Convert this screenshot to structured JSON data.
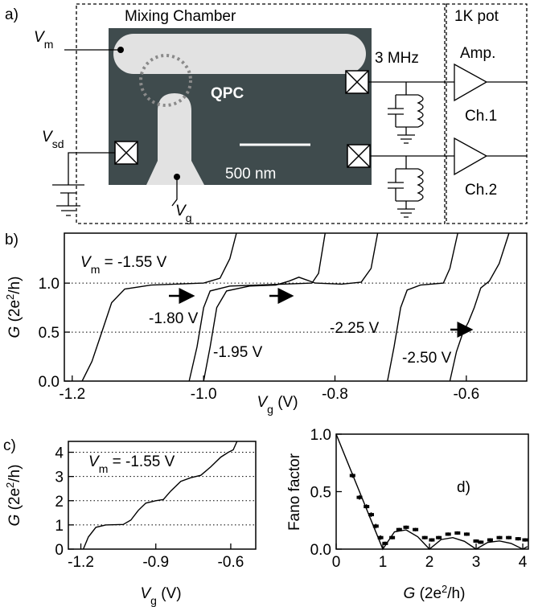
{
  "panel_labels": {
    "a": "a)",
    "b": "b)",
    "c": "c)"
  },
  "diagram": {
    "mixing_chamber": "Mixing Chamber",
    "pot": "1K pot",
    "vm": {
      "symbol": "V",
      "sub": "m"
    },
    "vsd": {
      "symbol": "V",
      "sub": "sd"
    },
    "vg": {
      "symbol": "V",
      "sub": "g"
    },
    "qpc": "QPC",
    "scale_bar": "500 nm",
    "filter": "3 MHz",
    "amp": "Amp.",
    "ch1": "Ch.1",
    "ch2": "Ch.2"
  },
  "chart_data": [
    {
      "type": "line",
      "xlim": [
        -1.212,
        -0.508
      ],
      "ylim": [
        0,
        1.51
      ],
      "xticks": [
        -1.2,
        {
          "value": -1.0,
          "label": "-1.0"
        },
        -0.8,
        -0.6
      ],
      "yticks": [
        {
          "value": 0,
          "label": "0.0"
        },
        0.5,
        {
          "value": 1.0,
          "label": "1.0"
        }
      ],
      "grid": true,
      "grid_style": "dotted",
      "color": "#000000",
      "xlabel": {
        "symbol": "V",
        "sub": "g",
        "text": " (V)"
      },
      "ylabel": {
        "symbol": "G",
        "text": " (2e",
        "sup": "2",
        "rest": "/h)"
      },
      "label_prefix": {
        "symbol": "V",
        "sub": "m",
        "text": " =  "
      },
      "series": [
        {
          "name": "-1.55 V",
          "x": [
            -1.185,
            -1.17,
            -1.155,
            -1.14,
            -1.12,
            -1.08,
            -1.0,
            -0.975,
            -0.96,
            -0.95
          ],
          "values": [
            0,
            0.2,
            0.5,
            0.8,
            0.94,
            0.98,
            1.0,
            1.05,
            1.25,
            1.51
          ]
        },
        {
          "name": "-1.80 V",
          "x": [
            -1.022,
            -1.01,
            -1.0,
            -0.99,
            -0.96,
            -0.88,
            -0.835,
            -0.825,
            -0.815
          ],
          "values": [
            0,
            0.35,
            0.75,
            0.92,
            0.97,
            0.99,
            1.0,
            1.1,
            1.51
          ]
        },
        {
          "name": "-1.95 V",
          "x": [
            -1.0,
            -0.99,
            -0.98,
            -0.965,
            -0.93,
            -0.89,
            -0.87,
            -0.855,
            -0.83,
            -0.79,
            -0.76,
            -0.745,
            -0.735
          ],
          "values": [
            0,
            0.35,
            0.75,
            0.92,
            0.97,
            0.98,
            1.02,
            1.06,
            1.0,
            0.99,
            1.01,
            1.15,
            1.51
          ]
        },
        {
          "name": "-2.25 V",
          "x": [
            -0.72,
            -0.71,
            -0.7,
            -0.69,
            -0.67,
            -0.635,
            -0.625,
            -0.613
          ],
          "values": [
            0,
            0.35,
            0.75,
            0.93,
            0.98,
            1.0,
            1.15,
            1.51
          ]
        },
        {
          "name": "-2.50 V",
          "x": [
            -0.625,
            -0.615,
            -0.605,
            -0.597,
            -0.588,
            -0.578,
            -0.565,
            -0.55,
            -0.535
          ],
          "values": [
            0,
            0.3,
            0.5,
            0.6,
            0.75,
            0.95,
            1.02,
            1.2,
            1.51
          ]
        }
      ]
    },
    {
      "type": "line",
      "xlim": [
        -1.25,
        -0.5
      ],
      "ylim": [
        0,
        4.45
      ],
      "xticks": [
        -1.2,
        -0.9,
        -0.6
      ],
      "yticks": [
        0,
        1,
        2,
        3,
        4
      ],
      "grid": true,
      "grid_style": "dotted",
      "color": "#000000",
      "xlabel": {
        "symbol": "V",
        "sub": "g",
        "text": " (V)"
      },
      "ylabel": {
        "symbol": "G",
        "text": " (2e",
        "sup": "2",
        "rest": "/h)"
      },
      "label_prefix": {
        "symbol": "V",
        "sub": "m",
        "text": " =  "
      },
      "series": [
        {
          "name": "-1.55 V",
          "x": [
            -1.19,
            -1.17,
            -1.14,
            -1.1,
            -1.03,
            -1.0,
            -0.97,
            -0.94,
            -0.9,
            -0.87,
            -0.84,
            -0.8,
            -0.76,
            -0.72,
            -0.68,
            -0.64,
            -0.61,
            -0.59,
            -0.575
          ],
          "values": [
            0,
            0.5,
            0.9,
            1.0,
            1.02,
            1.2,
            1.6,
            1.9,
            2.0,
            2.05,
            2.4,
            2.8,
            2.95,
            3.05,
            3.4,
            3.8,
            4.0,
            4.1,
            4.45
          ]
        }
      ]
    },
    {
      "type": "line",
      "xlim": [
        0,
        4.12
      ],
      "ylim": [
        0,
        1.0
      ],
      "xticks": [
        0,
        1,
        2,
        3,
        4
      ],
      "yticks": [
        {
          "value": 0,
          "label": "0.0"
        },
        0.5,
        {
          "value": 1.0,
          "label": "1.0"
        }
      ],
      "grid": false,
      "color": "#000000",
      "annotation": "d)",
      "xlabel": {
        "symbol": "G",
        "text": " (2e",
        "sup": "2",
        "rest": "/h)"
      },
      "ylabel": {
        "text": "Fano factor"
      },
      "series": [
        {
          "style": "line",
          "x": [
            0,
            0.25,
            0.5,
            0.75,
            1,
            1.25,
            1.5,
            1.75,
            2,
            2.25,
            2.5,
            2.75,
            3,
            3.25,
            3.5,
            3.75,
            4,
            4.1
          ],
          "values": [
            1,
            0.75,
            0.5,
            0.25,
            0,
            0.15,
            0.167,
            0.107,
            0,
            0.083,
            0.1,
            0.068,
            0,
            0.058,
            0.071,
            0.05,
            0,
            0.022
          ]
        },
        {
          "style": "markers",
          "x": [
            0.35,
            0.5,
            0.65,
            0.75,
            0.85,
            0.95,
            1.05,
            1.2,
            1.35,
            1.5,
            1.7,
            1.9,
            2.05,
            2.2,
            2.4,
            2.6,
            2.8,
            3.0,
            3.1,
            3.3,
            3.5,
            3.7,
            3.9,
            4.05
          ],
          "values": [
            0.64,
            0.45,
            0.37,
            0.3,
            0.2,
            0.1,
            0.05,
            0.1,
            0.17,
            0.19,
            0.17,
            0.1,
            0.08,
            0.1,
            0.13,
            0.14,
            0.13,
            0.07,
            0.06,
            0.08,
            0.1,
            0.1,
            0.09,
            0.08
          ],
          "errors": [
            0.02,
            0.02,
            0.02,
            0.02,
            0.02,
            0.02,
            0.015,
            0.015,
            0.015,
            0.015,
            0.015,
            0.015,
            0.015,
            0.015,
            0.015,
            0.015,
            0.015,
            0.015,
            0.015,
            0.015,
            0.015,
            0.015,
            0.015,
            0.015
          ]
        }
      ]
    }
  ]
}
